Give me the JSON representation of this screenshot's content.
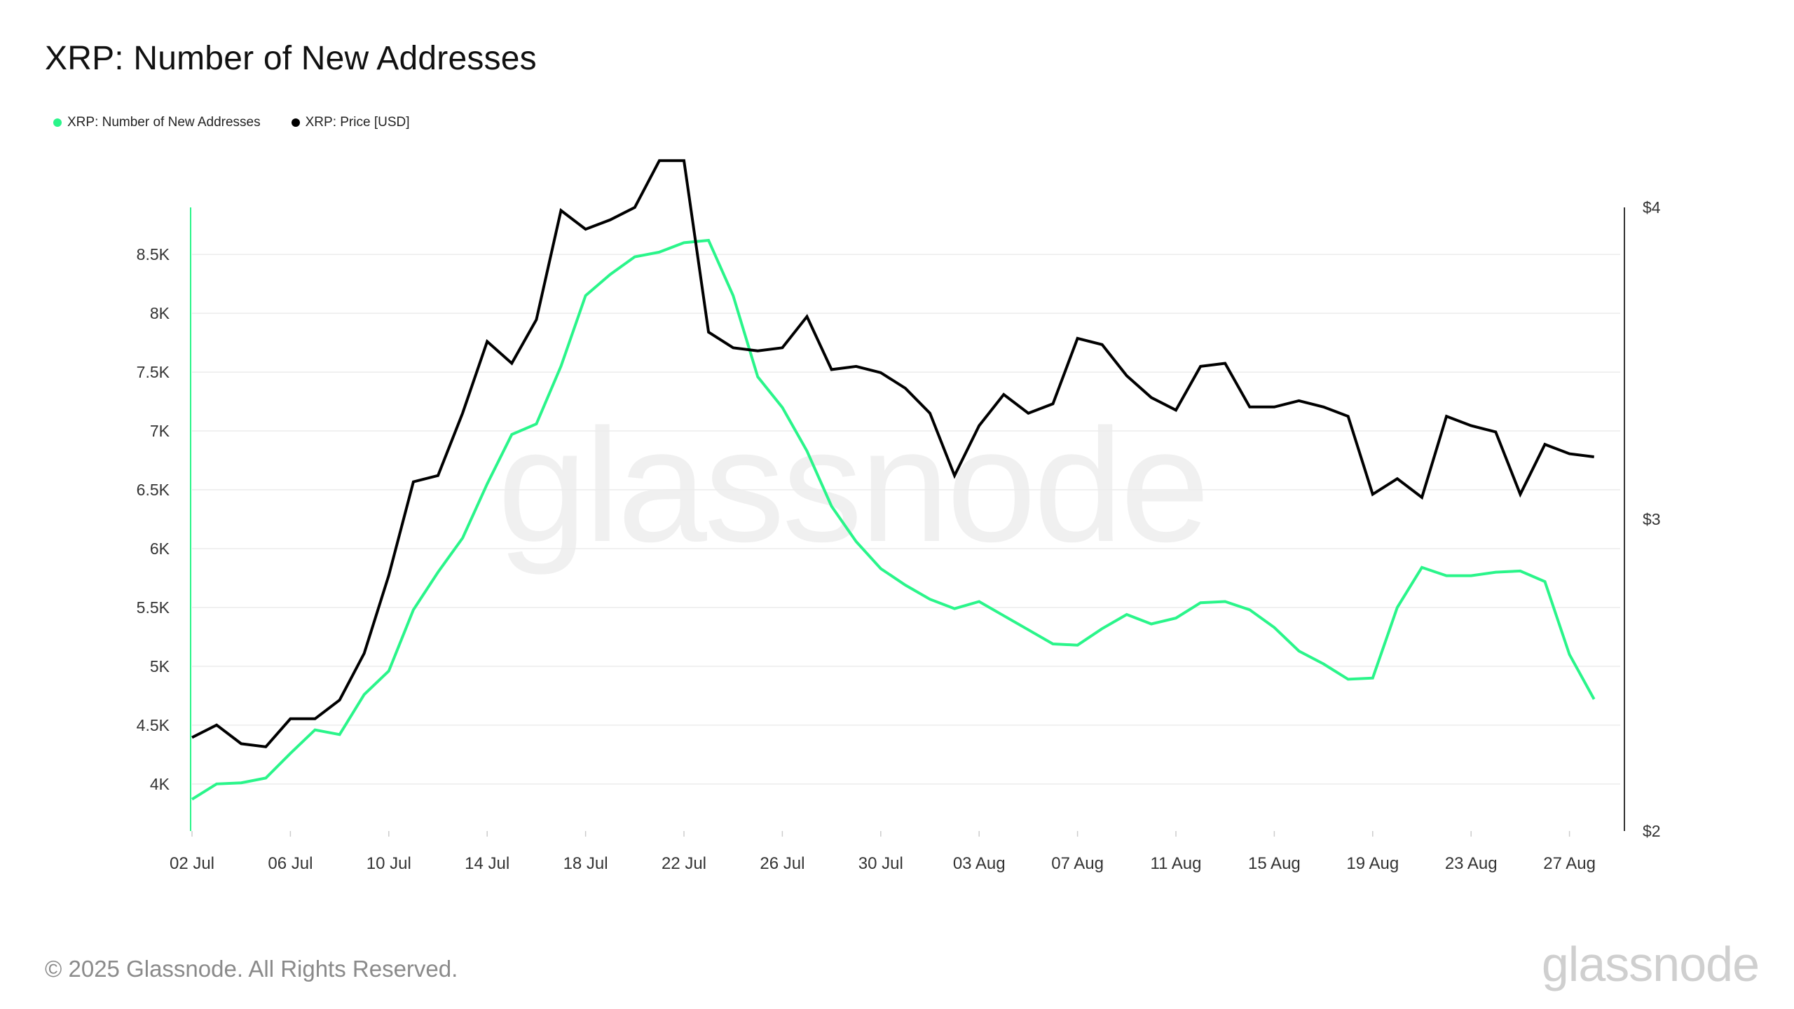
{
  "page": {
    "title": "XRP: Number of New Addresses",
    "footer": "© 2025 Glassnode. All Rights Reserved.",
    "brand": "glassnode",
    "watermark": "glassnode"
  },
  "legend": [
    {
      "label": "XRP: Number of New Addresses",
      "color": "#2af58a"
    },
    {
      "label": "XRP: Price [USD]",
      "color": "#000000"
    }
  ],
  "chart_data": {
    "type": "line",
    "title": "XRP: Number of New Addresses",
    "x_tick_labels": [
      "02 Jul",
      "06 Jul",
      "10 Jul",
      "14 Jul",
      "18 Jul",
      "22 Jul",
      "26 Jul",
      "30 Jul",
      "03 Aug",
      "07 Aug",
      "11 Aug",
      "15 Aug",
      "19 Aug",
      "23 Aug",
      "27 Aug"
    ],
    "y_left": {
      "ticks": [
        4000,
        4500,
        5000,
        5500,
        6000,
        6500,
        7000,
        7500,
        8000,
        8500
      ],
      "tick_labels": [
        "4K",
        "4.5K",
        "5K",
        "5.5K",
        "6K",
        "6.5K",
        "7K",
        "7.5K",
        "8K",
        "8.5K"
      ],
      "range": [
        3600,
        8900
      ]
    },
    "y_right": {
      "ticks": [
        2,
        3,
        4
      ],
      "tick_labels": [
        "$2",
        "$3",
        "$4"
      ],
      "range": [
        2,
        4
      ]
    },
    "grid": true,
    "legend_position": "top-left",
    "x": [
      "2025-07-02",
      "2025-07-03",
      "2025-07-04",
      "2025-07-05",
      "2025-07-06",
      "2025-07-07",
      "2025-07-08",
      "2025-07-09",
      "2025-07-10",
      "2025-07-11",
      "2025-07-12",
      "2025-07-13",
      "2025-07-14",
      "2025-07-15",
      "2025-07-16",
      "2025-07-17",
      "2025-07-18",
      "2025-07-19",
      "2025-07-20",
      "2025-07-21",
      "2025-07-22",
      "2025-07-23",
      "2025-07-24",
      "2025-07-25",
      "2025-07-26",
      "2025-07-27",
      "2025-07-28",
      "2025-07-29",
      "2025-07-30",
      "2025-07-31",
      "2025-08-01",
      "2025-08-02",
      "2025-08-03",
      "2025-08-04",
      "2025-08-05",
      "2025-08-06",
      "2025-08-07",
      "2025-08-08",
      "2025-08-09",
      "2025-08-10",
      "2025-08-11",
      "2025-08-12",
      "2025-08-13",
      "2025-08-14",
      "2025-08-15",
      "2025-08-16",
      "2025-08-17",
      "2025-08-18",
      "2025-08-19",
      "2025-08-20",
      "2025-08-21",
      "2025-08-22",
      "2025-08-23",
      "2025-08-24",
      "2025-08-25",
      "2025-08-26",
      "2025-08-27",
      "2025-08-28"
    ],
    "series": [
      {
        "name": "XRP: Number of New Addresses",
        "axis": "left",
        "color": "#2af58a",
        "values": [
          3870,
          4000,
          4010,
          4050,
          4260,
          4460,
          4420,
          4760,
          4960,
          5480,
          5800,
          6090,
          6550,
          6970,
          7060,
          7550,
          8150,
          8330,
          8480,
          8520,
          8600,
          8620,
          8150,
          7460,
          7200,
          6830,
          6360,
          6060,
          5830,
          5690,
          5570,
          5490,
          5550,
          5430,
          5310,
          5190,
          5180,
          5320,
          5440,
          5360,
          5410,
          5540,
          5550,
          5480,
          5330,
          5130,
          5020,
          4890,
          4900,
          5500,
          5840,
          5770,
          5770,
          5800,
          5810,
          5720,
          5100,
          4720
        ]
      },
      {
        "name": "XRP: Price [USD]",
        "axis": "right",
        "color": "#000000",
        "values": [
          2.3,
          2.34,
          2.28,
          2.27,
          2.36,
          2.36,
          2.42,
          2.57,
          2.82,
          3.12,
          3.14,
          3.34,
          3.57,
          3.5,
          3.64,
          3.99,
          3.93,
          3.96,
          4.0,
          4.15,
          4.15,
          3.6,
          3.55,
          3.54,
          3.55,
          3.65,
          3.48,
          3.49,
          3.47,
          3.42,
          3.34,
          3.14,
          3.3,
          3.4,
          3.34,
          3.37,
          3.58,
          3.56,
          3.46,
          3.39,
          3.35,
          3.49,
          3.5,
          3.36,
          3.36,
          3.38,
          3.36,
          3.33,
          3.08,
          3.13,
          3.07,
          3.33,
          3.3,
          3.28,
          3.08,
          3.24,
          3.21,
          3.2
        ]
      }
    ]
  }
}
